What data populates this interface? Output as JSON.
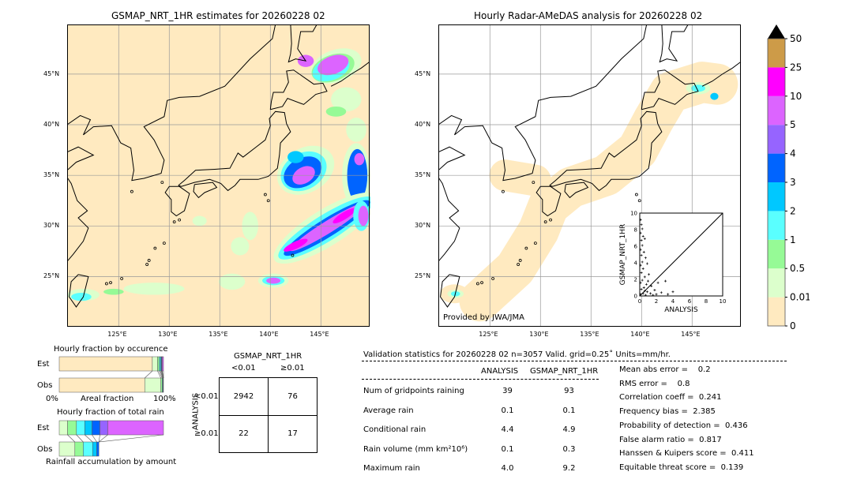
{
  "left_map": {
    "title": "GSMAP_NRT_1HR estimates for 20260228 02"
  },
  "right_map": {
    "title": "Hourly Radar-AMeDAS analysis for 20260228 02",
    "credit": "Provided by JWA/JMA"
  },
  "lon_ticks": [
    "125°E",
    "130°E",
    "135°E",
    "140°E",
    "145°E"
  ],
  "lat_ticks": [
    "45°N",
    "40°N",
    "35°N",
    "30°N",
    "25°N"
  ],
  "colorbar": {
    "labels": [
      "0",
      "0.01",
      "0.5",
      "1",
      "2",
      "3",
      "4",
      "5",
      "10",
      "25",
      "50"
    ],
    "colors": [
      "#ffeac0",
      "#dcffcc",
      "#96fa96",
      "#5affff",
      "#00c8ff",
      "#0064ff",
      "#9664ff",
      "#dc64ff",
      "#ff00ff",
      "#cd9b48"
    ],
    "extend_color": "#000000"
  },
  "occurrence": {
    "title": "Hourly fraction by occurence",
    "est_label": "Est",
    "obs_label": "Obs",
    "x_left": "0%",
    "x_mid": "Areal fraction",
    "x_right": "100%"
  },
  "total_rain": {
    "title": "Hourly fraction of total rain",
    "est_label": "Est",
    "obs_label": "Obs",
    "footer": "Rainfall accumulation by amount"
  },
  "contingency": {
    "title": "GSMAP_NRT_1HR",
    "col_lt": "<0.01",
    "col_ge": "≥0.01",
    "row_axis": "ANALYSIS",
    "row_lt": "<0.01",
    "row_ge": "≥0.01",
    "cells": [
      "2942",
      "76",
      "22",
      "17"
    ]
  },
  "stats": {
    "header": "Validation statistics for 20260228 02  n=3057 Valid. grid=0.25˚ Units=mm/hr.",
    "col_analysis": "ANALYSIS",
    "col_gsmap": "GSMAP_NRT_1HR",
    "rows": [
      {
        "label": "Num of gridpoints raining",
        "analysis": "39",
        "gsmap": "93"
      },
      {
        "label": "Average rain",
        "analysis": "0.1",
        "gsmap": "0.1"
      },
      {
        "label": "Conditional rain",
        "analysis": "4.4",
        "gsmap": "4.9"
      },
      {
        "label": "Rain volume (mm km²10⁶)",
        "analysis": "0.1",
        "gsmap": "0.3"
      },
      {
        "label": "Maximum rain",
        "analysis": "4.0",
        "gsmap": "9.2"
      }
    ],
    "scores": [
      "Mean abs error =    0.2",
      "RMS error =    0.8",
      "Correlation coeff =  0.241",
      "Frequency bias =  2.385",
      "Probability of detection =  0.436",
      "False alarm ratio =  0.817",
      "Hanssen & Kuipers score =  0.411",
      "Equitable threat score =  0.139"
    ]
  },
  "chart_data": [
    {
      "type": "scatter",
      "xlabel": "ANALYSIS",
      "ylabel": "GSMAP_NRT_1HR",
      "xlim": [
        0,
        10
      ],
      "ylim": [
        0,
        10
      ],
      "xticks": [
        "0",
        "2",
        "4",
        "6",
        "8",
        "10"
      ],
      "yticks": [
        "0",
        "2",
        "4",
        "6",
        "8",
        "10"
      ],
      "points": [
        [
          0.1,
          9.2
        ],
        [
          0.2,
          8.6
        ],
        [
          0.3,
          8.1
        ],
        [
          0.1,
          7.6
        ],
        [
          0.4,
          7.2
        ],
        [
          0.2,
          6.7
        ],
        [
          0.6,
          6.9
        ],
        [
          0.3,
          6.1
        ],
        [
          0.1,
          5.6
        ],
        [
          0.5,
          5.3
        ],
        [
          0.2,
          4.9
        ],
        [
          0.7,
          4.6
        ],
        [
          0.3,
          4.1
        ],
        [
          0.1,
          3.7
        ],
        [
          0.9,
          3.9
        ],
        [
          0.4,
          3.3
        ],
        [
          0.2,
          2.8
        ],
        [
          1.1,
          2.6
        ],
        [
          0.6,
          2.3
        ],
        [
          0.3,
          1.9
        ],
        [
          0.1,
          1.6
        ],
        [
          0.8,
          1.4
        ],
        [
          1.4,
          1.2
        ],
        [
          0.5,
          1.0
        ],
        [
          0.2,
          0.8
        ],
        [
          1.8,
          0.7
        ],
        [
          2.2,
          1.6
        ],
        [
          0.9,
          0.5
        ],
        [
          0.4,
          0.3
        ],
        [
          0.1,
          0.2
        ],
        [
          1.3,
          0.3
        ],
        [
          2.6,
          0.4
        ],
        [
          3.1,
          1.8
        ],
        [
          4.0,
          0.5
        ],
        [
          1.6,
          0.1
        ],
        [
          0.7,
          0.1
        ],
        [
          2.0,
          0.2
        ],
        [
          3.4,
          0.2
        ],
        [
          1.0,
          1.8
        ],
        [
          0.6,
          0.6
        ]
      ]
    },
    {
      "type": "bar",
      "title": "Hourly fraction by occurence",
      "categories": [
        "Est",
        "Obs"
      ],
      "bins": [
        "<0.01",
        "0.01-0.5",
        "0.5-1",
        "1-2",
        "2-3",
        "3-4",
        "4-5",
        ">5"
      ],
      "series": [
        {
          "name": "Est",
          "values": [
            0.893,
            0.05,
            0.015,
            0.012,
            0.008,
            0.006,
            0.004,
            0.012
          ]
        },
        {
          "name": "Obs",
          "values": [
            0.82,
            0.155,
            0.012,
            0.006,
            0.004,
            0.003,
            0,
            0
          ]
        }
      ]
    },
    {
      "type": "bar",
      "title": "Hourly fraction of total rain",
      "categories": [
        "Est",
        "Obs"
      ],
      "bins": [
        "0.01-0.5",
        "0.5-1",
        "1-2",
        "2-3",
        "3-4",
        "4-5",
        ">5"
      ],
      "series": [
        {
          "name": "Est",
          "values": [
            0.08,
            0.085,
            0.08,
            0.07,
            0.075,
            0.075,
            0.535
          ]
        },
        {
          "name": "Obs",
          "values": [
            0.15,
            0.08,
            0.09,
            0.04,
            0.02,
            0,
            0
          ]
        }
      ]
    },
    {
      "type": "table",
      "title": "Contingency table",
      "rows": [
        "ANALYSIS <0.01",
        "ANALYSIS ≥0.01"
      ],
      "columns": [
        "GSMAP <0.01",
        "GSMAP ≥0.01"
      ],
      "values": [
        [
          2942,
          76
        ],
        [
          22,
          17
        ]
      ]
    }
  ]
}
